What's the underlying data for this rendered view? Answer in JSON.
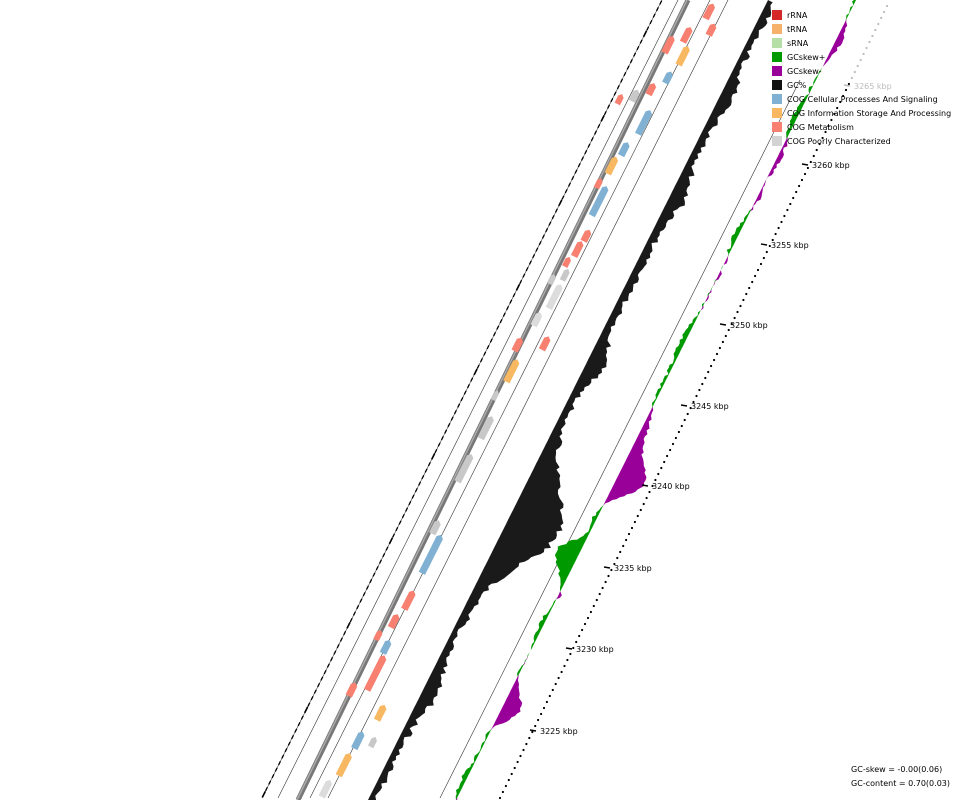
{
  "legend": [
    {
      "label": "rRNA",
      "color": "#d62728"
    },
    {
      "label": "tRNA",
      "color": "#f6b26b"
    },
    {
      "label": "sRNA",
      "color": "#b6dfa8"
    },
    {
      "label": "GCskew+",
      "color": "#009900"
    },
    {
      "label": "GCskew-",
      "color": "#990099"
    },
    {
      "label": "GC%",
      "color": "#111111"
    },
    {
      "label": "COG Cellular Processes And Signaling",
      "color": "#80b1d3"
    },
    {
      "label": "COG Information Storage And Processing",
      "color": "#f8b862"
    },
    {
      "label": "COG Metabolism",
      "color": "#f88070"
    },
    {
      "label": "COG Poorly Characterized",
      "color": "#d3d3d3"
    }
  ],
  "scale_labels": [
    "3225 kbp",
    "3230 kbp",
    "3235 kbp",
    "3240 kbp",
    "3245 kbp",
    "3250 kbp",
    "3255 kbp",
    "3260 kbp",
    "3265 kbp"
  ],
  "stats": {
    "gc_skew": "GC-skew = -0.00(0.06)",
    "gc_content": "GC-content = 0.70(0.03)"
  }
}
